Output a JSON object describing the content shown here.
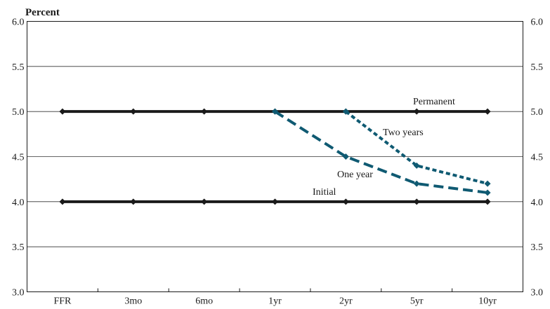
{
  "chart_data": {
    "type": "line",
    "ylabel": "Percent",
    "ylim": [
      3.0,
      6.0
    ],
    "yticks": [
      "3.0",
      "3.5",
      "4.0",
      "4.5",
      "5.0",
      "5.5",
      "6.0"
    ],
    "categories": [
      "FFR",
      "3mo",
      "6mo",
      "1yr",
      "2yr",
      "5yr",
      "10yr"
    ],
    "grid": true,
    "series": [
      {
        "name": "Initial",
        "style": "solid",
        "color": "#1a1a1a",
        "x": [
          "FFR",
          "3mo",
          "6mo",
          "1yr",
          "2yr",
          "5yr",
          "10yr"
        ],
        "values": [
          4.0,
          4.0,
          4.0,
          4.0,
          4.0,
          4.0,
          4.0
        ]
      },
      {
        "name": "Permanent",
        "style": "solid",
        "color": "#1a1a1a",
        "x": [
          "FFR",
          "3mo",
          "6mo",
          "1yr",
          "2yr",
          "5yr",
          "10yr"
        ],
        "values": [
          5.0,
          5.0,
          5.0,
          5.0,
          5.0,
          5.0,
          5.0
        ]
      },
      {
        "name": "One year",
        "style": "long-dash",
        "color": "#0f5a72",
        "x": [
          "1yr",
          "2yr",
          "5yr",
          "10yr"
        ],
        "values": [
          5.0,
          4.5,
          4.2,
          4.1
        ]
      },
      {
        "name": "Two years",
        "style": "short-dash",
        "color": "#0f5a72",
        "x": [
          "2yr",
          "5yr",
          "10yr"
        ],
        "values": [
          5.0,
          4.4,
          4.2
        ]
      }
    ],
    "annotations": [
      {
        "text": "Permanent",
        "series": "Permanent"
      },
      {
        "text": "Two years",
        "series": "Two years"
      },
      {
        "text": "One year",
        "series": "One year"
      },
      {
        "text": "Initial",
        "series": "Initial"
      }
    ]
  }
}
